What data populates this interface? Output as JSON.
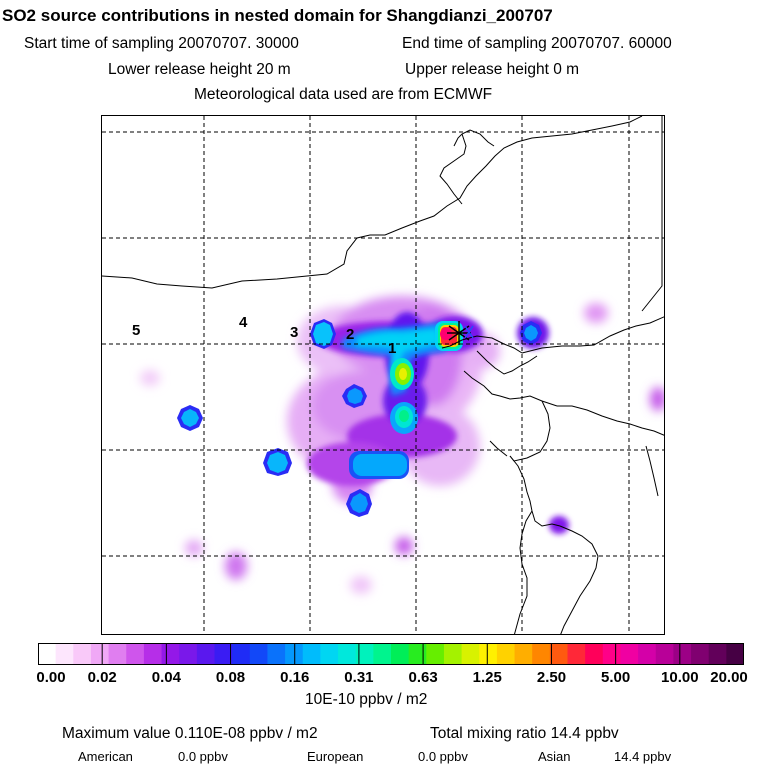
{
  "header": {
    "title": "SO2 source contributions in nested domain for Shangdianzi_200707",
    "start_time": "Start time of sampling 20070707. 30000",
    "end_time": "End time of sampling 20070707. 60000",
    "lower_release": "Lower release height   20 m",
    "upper_release": "Upper release height    0 m",
    "met_data": "Meteorological data used are from ECMWF"
  },
  "map": {
    "zone_labels": [
      "1",
      "2",
      "3",
      "4",
      "5"
    ],
    "station_marker": "station-star-icon"
  },
  "colorbar": {
    "tick_labels": [
      "0.00",
      "0.02",
      "0.04",
      "0.08",
      "0.16",
      "0.31",
      "0.63",
      "1.25",
      "2.50",
      "5.00",
      "10.00",
      "20.00"
    ],
    "colors": [
      "#ffffff",
      "#fde6fd",
      "#f9c9f9",
      "#f0a8f6",
      "#e07ef0",
      "#cf55ec",
      "#b62ee8",
      "#9418e8",
      "#7a18ea",
      "#5a18ee",
      "#3a1cf3",
      "#1f2cf6",
      "#1248f8",
      "#0a72fb",
      "#0498fd",
      "#00bcfc",
      "#00d6f2",
      "#00e8dc",
      "#00f2bc",
      "#00f48e",
      "#00ee58",
      "#28ec20",
      "#66ee00",
      "#a4f200",
      "#d8f200",
      "#fff000",
      "#ffd200",
      "#ffae00",
      "#ff8600",
      "#ff5a10",
      "#ff2838",
      "#ff005a",
      "#ff0088",
      "#f000a2",
      "#d400a8",
      "#b80098",
      "#9c0086",
      "#800070",
      "#62005a",
      "#460044"
    ],
    "unit": "10E-10 ppbv / m2"
  },
  "footer": {
    "max_value": "Maximum value  0.110E-08 ppbv / m2",
    "total_mixing": "Total mixing ratio      14.4 ppbv",
    "american_label": "American",
    "american_value": "0.0 ppbv",
    "european_label": "European",
    "european_value": "0.0 ppbv",
    "asian_label": "Asian",
    "asian_value": "14.4 ppbv"
  }
}
